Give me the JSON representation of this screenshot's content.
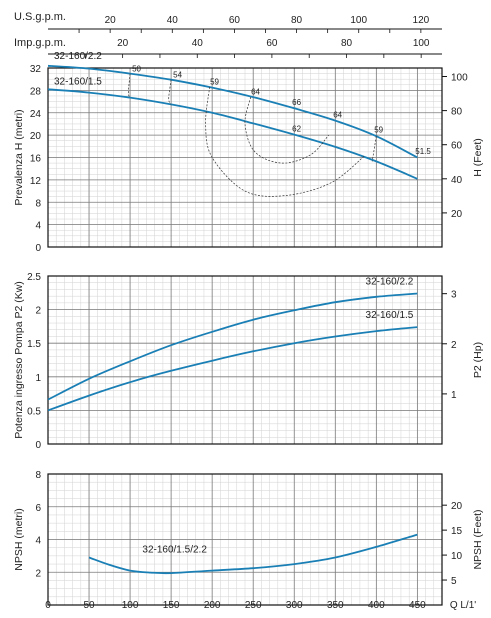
{
  "colors": {
    "curve": "#1a7fb5",
    "grid_major": "#7a7a7a",
    "grid_minor": "#d2d2d2",
    "axis": "#111111",
    "iso": "#333333"
  },
  "chart_data": [
    {
      "type": "line",
      "title": "",
      "ylabel": "Prevalenza H (metri)",
      "ylabel_right": "H (Feet)",
      "top_axis_us_label": "U.S.g.p.m.",
      "top_axis_imp_label": "Imp.g.p.m.",
      "top_axis_us_ticks": [
        "20",
        "40",
        "60",
        "80",
        "100",
        "120"
      ],
      "top_axis_imp_ticks": [
        "20",
        "40",
        "60",
        "80",
        "100"
      ],
      "xlim": [
        0,
        480
      ],
      "ylim": [
        0,
        32
      ],
      "yticks": [
        "0",
        "4",
        "8",
        "12",
        "16",
        "20",
        "24",
        "28",
        "32"
      ],
      "yticks_right": [
        "20",
        "40",
        "60",
        "80",
        "100"
      ],
      "grid": true,
      "series": [
        {
          "name": "32-160/2.2",
          "x": [
            0,
            50,
            100,
            150,
            200,
            250,
            300,
            350,
            400,
            450
          ],
          "y": [
            32.4,
            31.9,
            31.0,
            29.9,
            28.5,
            26.8,
            24.8,
            22.6,
            19.8,
            16.0
          ]
        },
        {
          "name": "32-160/1.5",
          "x": [
            0,
            50,
            100,
            150,
            200,
            250,
            300,
            350,
            400,
            450
          ],
          "y": [
            28.2,
            27.6,
            26.7,
            25.5,
            24.0,
            22.1,
            20.1,
            17.9,
            15.3,
            12.2
          ]
        }
      ],
      "efficiency_labels": [
        {
          "text": "50",
          "x": 100,
          "y": 31.0
        },
        {
          "text": "54",
          "x": 150,
          "y": 29.9
        },
        {
          "text": "59",
          "x": 195,
          "y": 28.7
        },
        {
          "text": "64",
          "x": 245,
          "y": 26.9
        },
        {
          "text": "66",
          "x": 295,
          "y": 25.0
        },
        {
          "text": "62",
          "x": 295,
          "y": 20.3
        },
        {
          "text": "64",
          "x": 345,
          "y": 22.8
        },
        {
          "text": "59",
          "x": 395,
          "y": 20.1
        },
        {
          "text": "51.5",
          "x": 445,
          "y": 16.3
        }
      ]
    },
    {
      "type": "line",
      "title": "",
      "ylabel": "Potenza ingresso Pompa P2 (Kw)",
      "ylabel_right": "P2 (Hp)",
      "xlim": [
        0,
        480
      ],
      "ylim": [
        0,
        2.5
      ],
      "yticks": [
        "0",
        "0.5",
        "1",
        "1.5",
        "2",
        "2.5"
      ],
      "yticks_right": [
        "1",
        "2",
        "3"
      ],
      "grid": true,
      "series": [
        {
          "name": "32-160/2.2",
          "x": [
            0,
            50,
            100,
            150,
            200,
            250,
            300,
            350,
            400,
            450
          ],
          "y": [
            0.66,
            0.97,
            1.23,
            1.47,
            1.67,
            1.85,
            1.99,
            2.11,
            2.19,
            2.24
          ]
        },
        {
          "name": "32-160/1.5",
          "x": [
            0,
            50,
            100,
            150,
            200,
            250,
            300,
            350,
            400,
            450
          ],
          "y": [
            0.5,
            0.72,
            0.92,
            1.09,
            1.24,
            1.38,
            1.5,
            1.6,
            1.68,
            1.74
          ]
        }
      ]
    },
    {
      "type": "line",
      "title": "",
      "ylabel": "NPSH (metri)",
      "ylabel_right": "NPSH (Feet)",
      "xlabel": "Q  L/1'",
      "xlim": [
        0,
        480
      ],
      "xticks": [
        "0",
        "50",
        "100",
        "150",
        "200",
        "250",
        "300",
        "350",
        "400",
        "450"
      ],
      "ylim": [
        0,
        8
      ],
      "yticks": [
        "2",
        "4",
        "6",
        "8"
      ],
      "yticks_right": [
        "5",
        "10",
        "15",
        "20"
      ],
      "grid": true,
      "series": [
        {
          "name": "32-160/1.5/2.2",
          "x": [
            50,
            75,
            100,
            125,
            150,
            200,
            250,
            300,
            350,
            400,
            450
          ],
          "y": [
            2.9,
            2.45,
            2.1,
            1.98,
            1.95,
            2.1,
            2.25,
            2.5,
            2.9,
            3.55,
            4.3
          ]
        }
      ]
    }
  ]
}
